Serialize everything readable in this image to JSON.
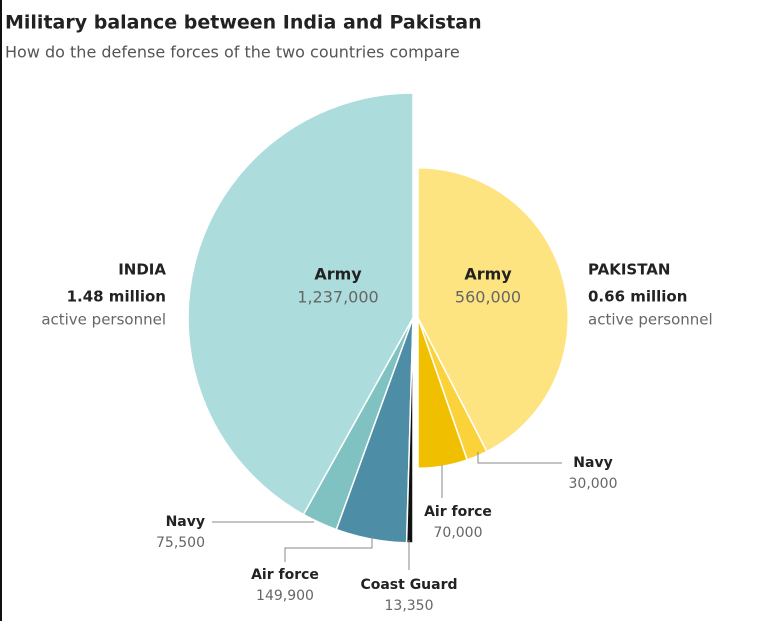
{
  "chart_data": {
    "type": "pie",
    "title": "Military balance between India and Pakistan",
    "subtitle": "How do the defense forces of the two countries compare",
    "series": [
      {
        "name": "INDIA",
        "total": 1.48,
        "total_label": "1.48 million",
        "note": "active personnel",
        "categories": [
          "Army",
          "Navy",
          "Air force",
          "Coast Guard"
        ],
        "values": [
          1237000,
          75500,
          149900,
          13350
        ],
        "value_labels": [
          "1,237,000",
          "75,500",
          "149,900",
          "13,350"
        ],
        "colors": [
          "#acdcdc",
          "#80c1c1",
          "#4d8ea6",
          "#111111"
        ]
      },
      {
        "name": "PAKISTAN",
        "total": 0.66,
        "total_label": "0.66 million",
        "note": "active personnel",
        "categories": [
          "Army",
          "Navy",
          "Air force"
        ],
        "values": [
          560000,
          30000,
          70000
        ],
        "value_labels": [
          "560,000",
          "30,000",
          "70,000"
        ],
        "colors": [
          "#fde480",
          "#fbd23a",
          "#f0c000"
        ]
      }
    ]
  }
}
